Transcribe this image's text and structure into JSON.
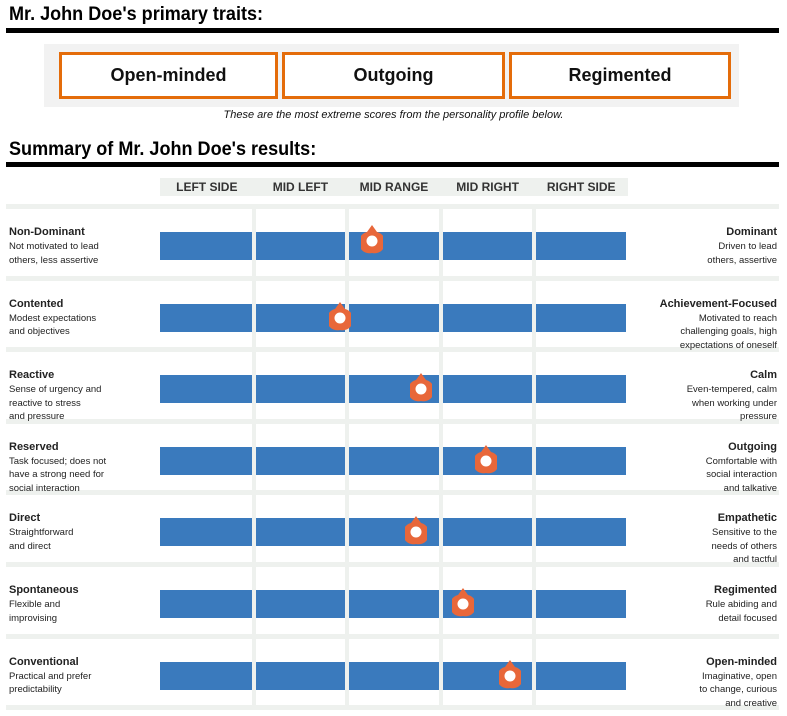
{
  "header": {
    "title": "Mr. John Doe's primary traits:"
  },
  "primary_traits": [
    "Open-minded",
    "Outgoing",
    "Regimented"
  ],
  "traits_note": "These are the most extreme scores from the personality profile below.",
  "summary": {
    "title": "Summary of Mr. John Doe's results:"
  },
  "columns": [
    "LEFT SIDE",
    "MID LEFT",
    "MID RANGE",
    "MID RIGHT",
    "RIGHT SIDE"
  ],
  "colors": {
    "bar": "#3a7abd",
    "accent": "#e46c0a",
    "marker": "#e8673a"
  },
  "rows": [
    {
      "left": "Non-Dominant",
      "left_desc": [
        "Not motivated to lead",
        "others, less assertive"
      ],
      "right": "Dominant",
      "right_desc": [
        "Driven to lead",
        "others, assertive"
      ],
      "score": 0.453
    },
    {
      "left": "Contented",
      "left_desc": [
        "Modest expectations",
        "and objectives"
      ],
      "right": "Achievement-Focused",
      "right_desc": [
        "Motivated to reach",
        "challenging goals, high",
        "expectations of oneself"
      ],
      "score": 0.385
    },
    {
      "left": "Reactive",
      "left_desc": [
        "Sense of urgency and",
        "reactive to stress",
        "and pressure"
      ],
      "right": "Calm",
      "right_desc": [
        "Even-tempered, calm",
        "when working under",
        "pressure"
      ],
      "score": 0.558
    },
    {
      "left": "Reserved",
      "left_desc": [
        "Task focused; does not",
        "have a strong need for",
        "social interaction"
      ],
      "right": "Outgoing",
      "right_desc": [
        "Comfortable with",
        "social interaction",
        "and talkative"
      ],
      "score": 0.697
    },
    {
      "left": "Direct",
      "left_desc": [
        "Straightforward",
        "and direct"
      ],
      "right": "Empathetic",
      "right_desc": [
        "Sensitive to the",
        "needs of others",
        "and tactful"
      ],
      "score": 0.547
    },
    {
      "left": "Spontaneous",
      "left_desc": [
        "Flexible and",
        "improvising"
      ],
      "right": "Regimented",
      "right_desc": [
        "Rule abiding and",
        "detail focused"
      ],
      "score": 0.647
    },
    {
      "left": "Conventional",
      "left_desc": [
        "Practical and prefer",
        "predictability"
      ],
      "right": "Open-minded",
      "right_desc": [
        "Imaginative, open",
        "to change, curious",
        "and creative"
      ],
      "score": 0.748
    }
  ]
}
